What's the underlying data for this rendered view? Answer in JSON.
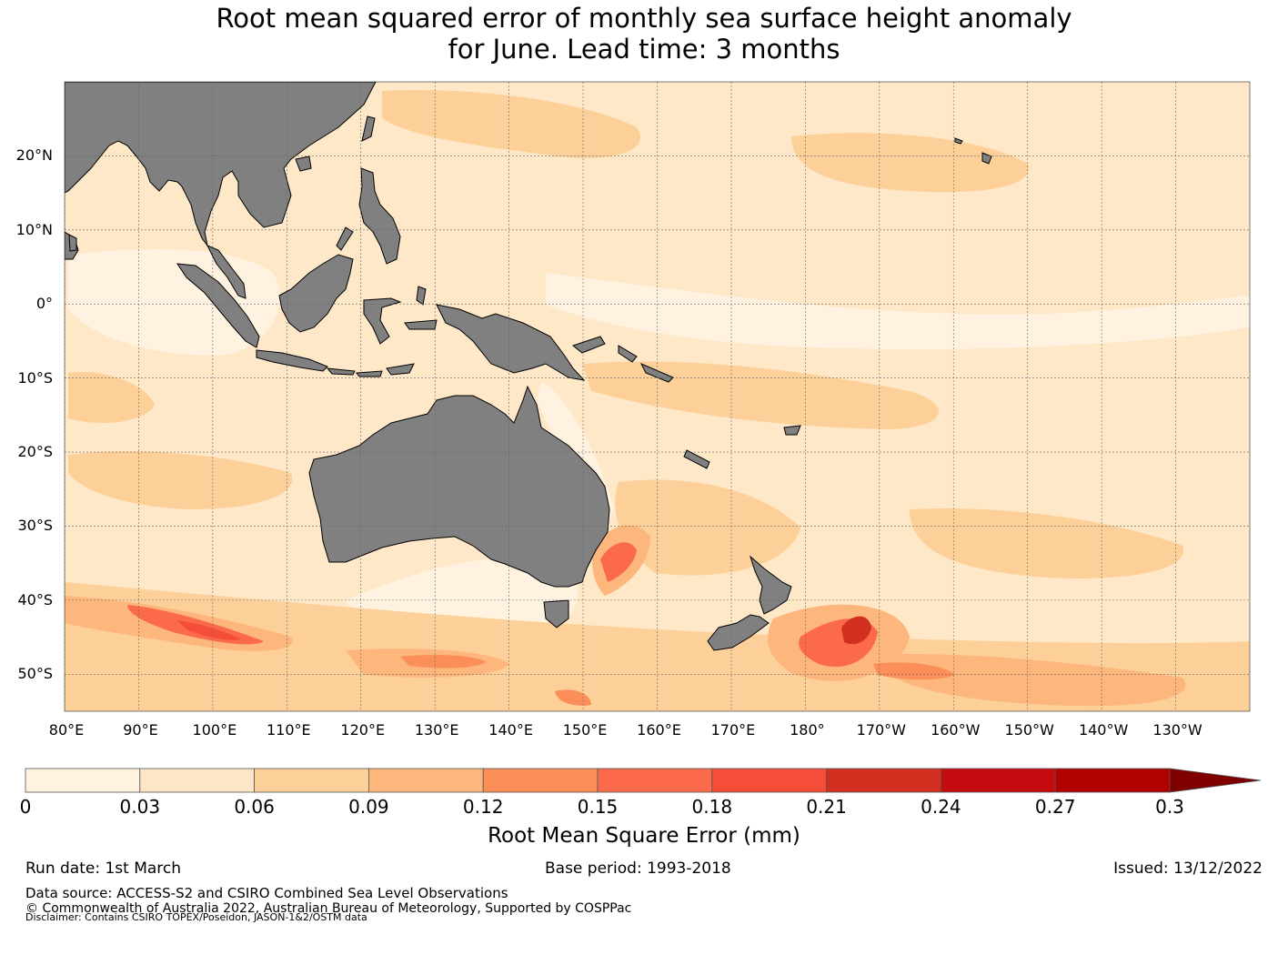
{
  "title": {
    "line1": "Root mean squared error of monthly sea surface height anomaly",
    "line2": "for June. Lead time: 3 months"
  },
  "map": {
    "lat_labels": [
      "20°N",
      "10°N",
      "0°",
      "10°S",
      "20°S",
      "30°S",
      "40°S",
      "50°S"
    ],
    "lon_labels": [
      "80°E",
      "90°E",
      "100°E",
      "110°E",
      "120°E",
      "130°E",
      "140°E",
      "150°E",
      "160°E",
      "170°E",
      "180°",
      "170°W",
      "160°W",
      "150°W",
      "140°W",
      "130°W"
    ],
    "lat_range": [
      -55,
      30
    ],
    "lon_range": [
      80,
      240
    ],
    "ocean_base_color": "#fee8c8",
    "land_color": "#808080",
    "land_regions": [
      "Asia",
      "Borneo",
      "Sumatra",
      "Sulawesi",
      "Philippines",
      "New Guinea",
      "Australia",
      "Tasmania",
      "New Zealand"
    ]
  },
  "colorbar": {
    "ticks": [
      "0",
      "0.03",
      "0.06",
      "0.09",
      "0.12",
      "0.15",
      "0.18",
      "0.21",
      "0.24",
      "0.27",
      "0.3"
    ],
    "levels": [
      0,
      0.03,
      0.06,
      0.09,
      0.12,
      0.15,
      0.18,
      0.21,
      0.24,
      0.27,
      0.3
    ],
    "colors": [
      "#fff2e0",
      "#fee5c6",
      "#fdd09a",
      "#fdb77d",
      "#fc8f59",
      "#fb6a4a",
      "#f44d38",
      "#d32f20",
      "#c40c10",
      "#b00000",
      "#7f0000"
    ],
    "extend": "max",
    "label": "Root Mean Square Error (mm)"
  },
  "footer": {
    "run_date": "Run date: 1st March",
    "base_period": "Base period: 1993-2018",
    "issued": "Issued: 13/12/2022",
    "data_source": "Data source: ACCESS-S2 and CSIRO Combined Sea Level Observations",
    "copyright": "© Commonwealth of Australia 2022, Australian Bureau of Meteorology, Supported by COSPPac",
    "disclaimer": "Disclaimer: Contains CSIRO TOPEX/Poseidon, JASON-1&2/OSTM data"
  }
}
